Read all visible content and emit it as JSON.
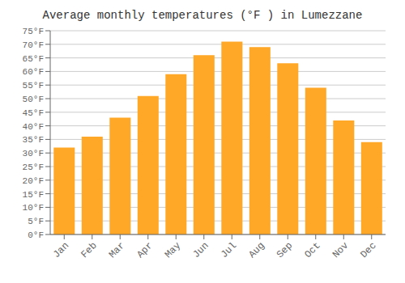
{
  "chart_data": {
    "type": "bar",
    "title": "Average monthly temperatures (°F ) in Lumezzane",
    "categories": [
      "Jan",
      "Feb",
      "Mar",
      "Apr",
      "May",
      "Jun",
      "Jul",
      "Aug",
      "Sep",
      "Oct",
      "Nov",
      "Dec"
    ],
    "values": [
      32,
      36,
      43,
      51,
      59,
      66,
      71,
      69,
      63,
      54,
      42,
      34
    ],
    "color": "#FFA726",
    "ylim": [
      0,
      75
    ],
    "yticks": [
      {
        "value": 0,
        "label": "0°F"
      },
      {
        "value": 5,
        "label": "5°F"
      },
      {
        "value": 10,
        "label": "10°F"
      },
      {
        "value": 15,
        "label": "15°F"
      },
      {
        "value": 20,
        "label": "20°F"
      },
      {
        "value": 25,
        "label": "25°F"
      },
      {
        "value": 30,
        "label": "30°F"
      },
      {
        "value": 35,
        "label": "35°F"
      },
      {
        "value": 40,
        "label": "40°F"
      },
      {
        "value": 45,
        "label": "45°F"
      },
      {
        "value": 50,
        "label": "50°F"
      },
      {
        "value": 55,
        "label": "55°F"
      },
      {
        "value": 60,
        "label": "60°F"
      },
      {
        "value": 65,
        "label": "65°F"
      },
      {
        "value": 70,
        "label": "70°F"
      },
      {
        "value": 75,
        "label": "75°F"
      }
    ],
    "grid": true
  }
}
